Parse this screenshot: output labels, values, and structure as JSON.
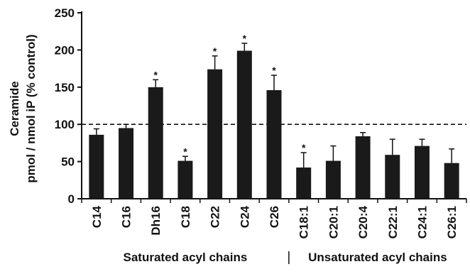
{
  "chart_data": {
    "type": "bar",
    "title": "",
    "ylabel_line1": "Ceramide",
    "ylabel_line2": "pmol / nmol iP (% control)",
    "xlabel": "",
    "ylim": [
      0,
      250
    ],
    "yticks": [
      0,
      50,
      100,
      150,
      200,
      250
    ],
    "reference_line": 100,
    "bar_color": "#1a1a1a",
    "categories": [
      "C14",
      "C16",
      "Dh16",
      "C18",
      "C22",
      "C24",
      "C26",
      "C18:1",
      "C20:1",
      "C20:4",
      "C22:1",
      "C24:1",
      "C26:1"
    ],
    "values": [
      86,
      95,
      150,
      51,
      174,
      199,
      146,
      42,
      51,
      84,
      59,
      71,
      48
    ],
    "errors": [
      8,
      5,
      10,
      6,
      18,
      10,
      20,
      20,
      20,
      5,
      21,
      9,
      19
    ],
    "significant": [
      false,
      false,
      true,
      true,
      true,
      true,
      true,
      true,
      false,
      false,
      false,
      false,
      false
    ],
    "significance_marker": "*",
    "groups": [
      {
        "label": "Saturated acyl chains",
        "start": 0,
        "end": 6
      },
      {
        "label": "Unsaturated acyl chains",
        "start": 7,
        "end": 12
      }
    ]
  }
}
